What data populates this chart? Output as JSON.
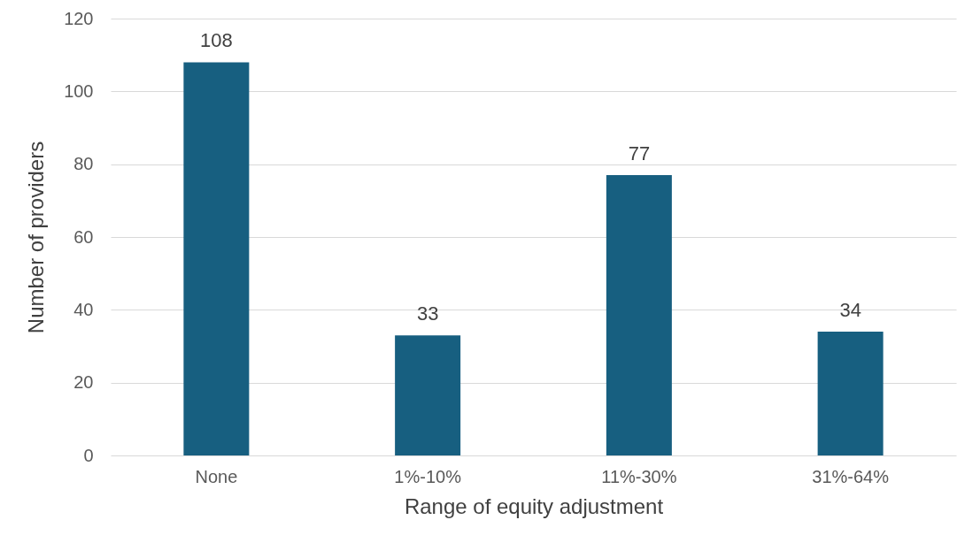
{
  "chart_data": {
    "type": "bar",
    "xlabel": "Range of equity adjustment",
    "ylabel": "Number of providers",
    "categories": [
      "None",
      "1%-10%",
      "11%-30%",
      "31%-64%"
    ],
    "values": [
      108,
      33,
      77,
      34
    ],
    "color": "#175f80",
    "ylim": [
      0,
      120
    ],
    "yticks": [
      0,
      20,
      40,
      60,
      80,
      100,
      120
    ],
    "grid": "y",
    "data_labels": true
  }
}
